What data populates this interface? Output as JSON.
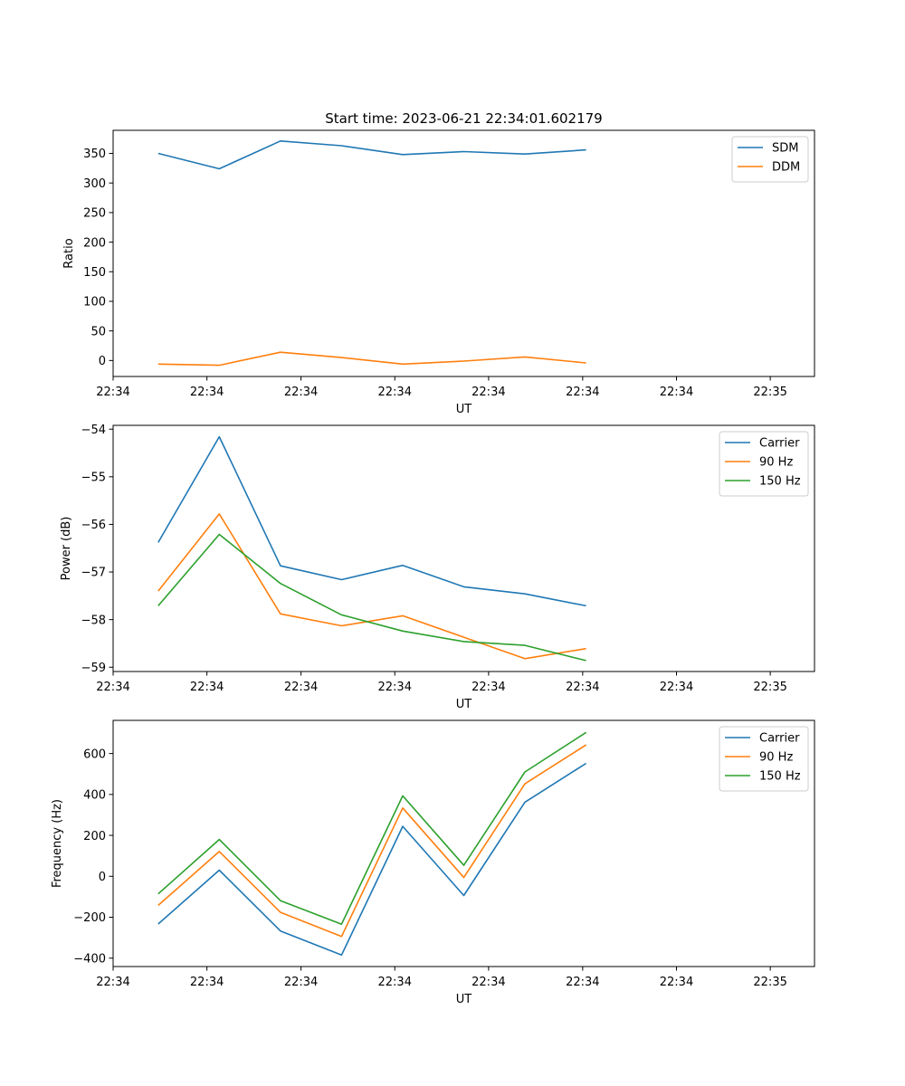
{
  "figure": {
    "suptitle": "Start time: 2023-06-21 22:34:01.602179"
  },
  "chart_data": [
    {
      "type": "line",
      "title": "Start time: 2023-06-21 22:34:01.602179",
      "xlabel": "UT",
      "ylabel": "Ratio",
      "xlim": [
        0,
        24.9
      ],
      "x_ticks": [
        {
          "value": 0,
          "label": "22:34"
        },
        {
          "value": 3.33,
          "label": "22:34"
        },
        {
          "value": 6.67,
          "label": "22:34"
        },
        {
          "value": 10,
          "label": "22:34"
        },
        {
          "value": 13.33,
          "label": "22:34"
        },
        {
          "value": 16.67,
          "label": "22:34"
        },
        {
          "value": 20,
          "label": "22:34"
        },
        {
          "value": 23.33,
          "label": "22:35"
        }
      ],
      "ylim": [
        -27,
        389
      ],
      "yticks": [
        0,
        50,
        100,
        150,
        200,
        250,
        300,
        350
      ],
      "grid": false,
      "legend": "upper-right",
      "x": [
        1.6,
        3.77,
        5.94,
        8.11,
        10.28,
        12.45,
        14.62,
        16.79
      ],
      "series": [
        {
          "name": "SDM",
          "color": "#1f77b4",
          "values": [
            350,
            324,
            371,
            363,
            348,
            353,
            349,
            356
          ]
        },
        {
          "name": "DDM",
          "color": "#ff7f0e",
          "values": [
            -6,
            -8,
            14,
            5,
            -6,
            -1,
            6,
            -4
          ]
        }
      ]
    },
    {
      "type": "line",
      "title": "",
      "xlabel": "UT",
      "ylabel": "Power (dB)",
      "xlim": [
        0,
        24.9
      ],
      "x_ticks": [
        {
          "value": 0,
          "label": "22:34"
        },
        {
          "value": 3.33,
          "label": "22:34"
        },
        {
          "value": 6.67,
          "label": "22:34"
        },
        {
          "value": 10,
          "label": "22:34"
        },
        {
          "value": 13.33,
          "label": "22:34"
        },
        {
          "value": 16.67,
          "label": "22:34"
        },
        {
          "value": 20,
          "label": "22:34"
        },
        {
          "value": 23.33,
          "label": "22:35"
        }
      ],
      "ylim": [
        -59.09,
        -53.92
      ],
      "yticks": [
        -59,
        -58,
        -57,
        -56,
        -55,
        -54
      ],
      "grid": false,
      "legend": "upper-right",
      "x": [
        1.6,
        3.77,
        5.94,
        8.11,
        10.28,
        12.45,
        14.62,
        16.79
      ],
      "series": [
        {
          "name": "Carrier",
          "color": "#1f77b4",
          "values": [
            -56.38,
            -54.16,
            -56.87,
            -57.16,
            -56.86,
            -57.31,
            -57.46,
            -57.71
          ]
        },
        {
          "name": "90 Hz",
          "color": "#ff7f0e",
          "values": [
            -57.4,
            -55.78,
            -57.88,
            -58.13,
            -57.92,
            -58.37,
            -58.82,
            -58.61
          ]
        },
        {
          "name": "150 Hz",
          "color": "#2ca02c",
          "values": [
            -57.71,
            -56.21,
            -57.24,
            -57.9,
            -58.24,
            -58.46,
            -58.54,
            -58.86
          ]
        }
      ]
    },
    {
      "type": "line",
      "title": "",
      "xlabel": "UT",
      "ylabel": "Frequency (Hz)",
      "xlim": [
        0,
        24.9
      ],
      "x_ticks": [
        {
          "value": 0,
          "label": "22:34"
        },
        {
          "value": 3.33,
          "label": "22:34"
        },
        {
          "value": 6.67,
          "label": "22:34"
        },
        {
          "value": 10,
          "label": "22:34"
        },
        {
          "value": 13.33,
          "label": "22:34"
        },
        {
          "value": 16.67,
          "label": "22:34"
        },
        {
          "value": 20,
          "label": "22:34"
        },
        {
          "value": 23.33,
          "label": "22:35"
        }
      ],
      "ylim": [
        -441,
        762
      ],
      "yticks": [
        -400,
        -200,
        0,
        200,
        400,
        600
      ],
      "grid": false,
      "legend": "upper-right",
      "x": [
        1.6,
        3.77,
        5.94,
        8.11,
        10.28,
        12.45,
        14.62,
        16.79
      ],
      "series": [
        {
          "name": "Carrier",
          "color": "#1f77b4",
          "values": [
            -233,
            30,
            -267,
            -385,
            244,
            -94,
            362,
            552
          ]
        },
        {
          "name": "90 Hz",
          "color": "#ff7f0e",
          "values": [
            -142,
            121,
            -176,
            -294,
            334,
            -6,
            452,
            642
          ]
        },
        {
          "name": "150 Hz",
          "color": "#2ca02c",
          "values": [
            -86,
            180,
            -119,
            -234,
            393,
            54,
            510,
            703
          ]
        }
      ]
    }
  ]
}
